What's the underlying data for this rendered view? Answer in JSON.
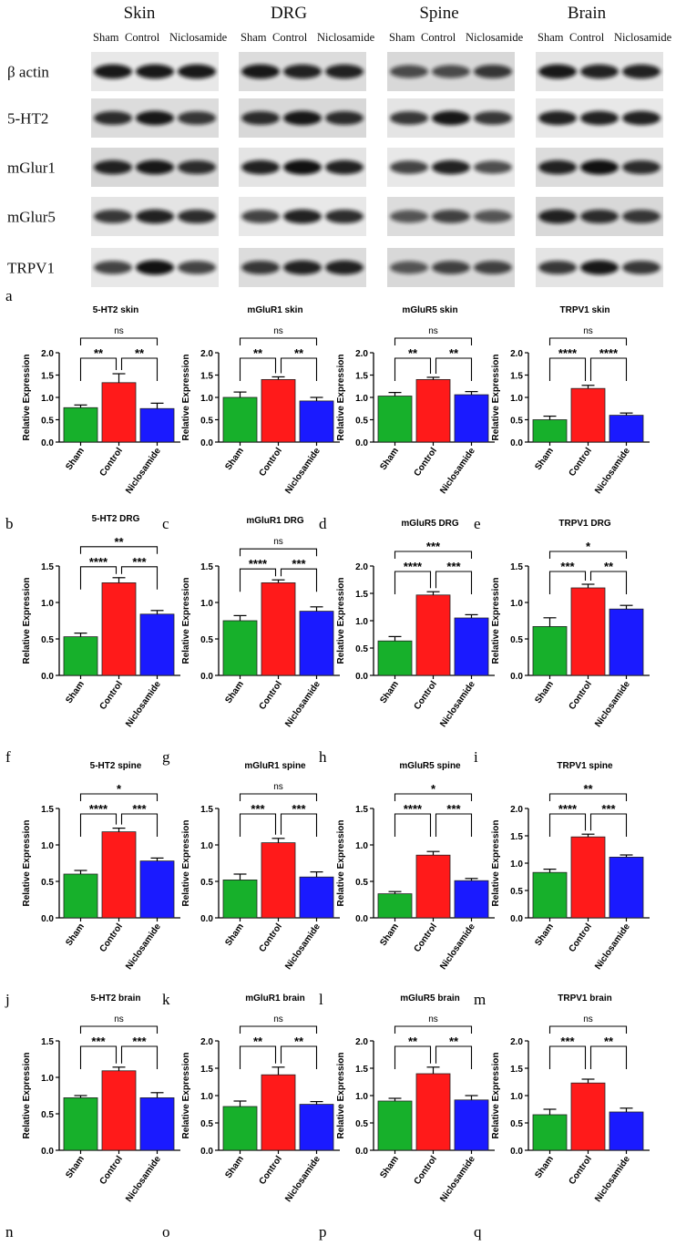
{
  "blot": {
    "panel_label": "a",
    "tissues": [
      "Skin",
      "DRG",
      "Spine",
      "Brain"
    ],
    "lane_labels": [
      "Sham",
      "Control",
      "Niclosamide"
    ],
    "row_labels": [
      "β actin",
      "5-HT2",
      "mGlur1",
      "mGlur5",
      "TRPV1"
    ]
  },
  "chart_labels": {
    "ylabel": "Relative Expression",
    "categories": [
      "Sham",
      "Control",
      "Niclosamide"
    ]
  },
  "colors": {
    "sham": "#17b02b",
    "control": "#ff1a1a",
    "niclosamide": "#1a1aff"
  },
  "chart_data": [
    {
      "type": "bar",
      "letter": "b",
      "title": "5-HT2 skin",
      "categories": [
        "Sham",
        "Control",
        "Niclosamide"
      ],
      "values": [
        0.77,
        1.33,
        0.75
      ],
      "errors": [
        0.06,
        0.2,
        0.12
      ],
      "ylim": [
        0,
        2.0
      ],
      "yticks": [
        "0.0",
        "0.5",
        "1.0",
        "1.5",
        "2.0"
      ],
      "ylabel": "Relative Expression",
      "brackets": [
        {
          "from": 0,
          "to": 1,
          "label": "**",
          "level": 0
        },
        {
          "from": 1,
          "to": 2,
          "label": "**",
          "level": 0
        },
        {
          "from": 0,
          "to": 2,
          "label": "ns",
          "level": 1
        }
      ]
    },
    {
      "type": "bar",
      "letter": "c",
      "title": "mGluR1 skin",
      "categories": [
        "Sham",
        "Control",
        "Niclosamide"
      ],
      "values": [
        1.0,
        1.4,
        0.92
      ],
      "errors": [
        0.12,
        0.06,
        0.08
      ],
      "ylim": [
        0,
        2.0
      ],
      "yticks": [
        "0.0",
        "0.5",
        "1.0",
        "1.5",
        "2.0"
      ],
      "ylabel": "Relative Expression",
      "brackets": [
        {
          "from": 0,
          "to": 1,
          "label": "**",
          "level": 0
        },
        {
          "from": 1,
          "to": 2,
          "label": "**",
          "level": 0
        },
        {
          "from": 0,
          "to": 2,
          "label": "ns",
          "level": 1
        }
      ]
    },
    {
      "type": "bar",
      "letter": "d",
      "title": "mGluR5 skin",
      "categories": [
        "Sham",
        "Control",
        "Niclosamide"
      ],
      "values": [
        1.03,
        1.4,
        1.06
      ],
      "errors": [
        0.08,
        0.05,
        0.07
      ],
      "ylim": [
        0,
        2.0
      ],
      "yticks": [
        "0.0",
        "0.5",
        "1.0",
        "1.5",
        "2.0"
      ],
      "ylabel": "Relative Expression",
      "brackets": [
        {
          "from": 0,
          "to": 1,
          "label": "**",
          "level": 0
        },
        {
          "from": 1,
          "to": 2,
          "label": "**",
          "level": 0
        },
        {
          "from": 0,
          "to": 2,
          "label": "ns",
          "level": 1
        }
      ]
    },
    {
      "type": "bar",
      "letter": "e",
      "title": "TRPV1 skin",
      "categories": [
        "Sham",
        "Control",
        "Niclosamide"
      ],
      "values": [
        0.5,
        1.2,
        0.6
      ],
      "errors": [
        0.08,
        0.07,
        0.05
      ],
      "ylim": [
        0,
        2.0
      ],
      "yticks": [
        "0.0",
        "0.5",
        "1.0",
        "1.5",
        "2.0"
      ],
      "ylabel": "Relative Expression",
      "brackets": [
        {
          "from": 0,
          "to": 1,
          "label": "****",
          "level": 0
        },
        {
          "from": 1,
          "to": 2,
          "label": "****",
          "level": 0
        },
        {
          "from": 0,
          "to": 2,
          "label": "ns",
          "level": 1
        }
      ]
    },
    {
      "type": "bar",
      "letter": "f",
      "title": "5-HT2 DRG",
      "categories": [
        "Sham",
        "Control",
        "Niclosamide"
      ],
      "values": [
        0.53,
        1.27,
        0.84
      ],
      "errors": [
        0.05,
        0.07,
        0.05
      ],
      "ylim": [
        0,
        1.5
      ],
      "yticks": [
        "0.0",
        "0.5",
        "1.0",
        "1.5"
      ],
      "ylabel": "Relative Expression",
      "brackets": [
        {
          "from": 0,
          "to": 1,
          "label": "****",
          "level": 0
        },
        {
          "from": 1,
          "to": 2,
          "label": "***",
          "level": 0
        },
        {
          "from": 0,
          "to": 2,
          "label": "**",
          "level": 1
        }
      ]
    },
    {
      "type": "bar",
      "letter": "g",
      "title": "mGluR1 DRG",
      "categories": [
        "Sham",
        "Control",
        "Niclosamide"
      ],
      "values": [
        0.75,
        1.27,
        0.88
      ],
      "errors": [
        0.07,
        0.04,
        0.06
      ],
      "ylim": [
        0,
        1.5
      ],
      "yticks": [
        "0.0",
        "0.5",
        "1.0",
        "1.5"
      ],
      "ylabel": "Relative Expression",
      "brackets": [
        {
          "from": 0,
          "to": 1,
          "label": "****",
          "level": 0
        },
        {
          "from": 1,
          "to": 2,
          "label": "***",
          "level": 0
        },
        {
          "from": 0,
          "to": 2,
          "label": "ns",
          "level": 1
        }
      ]
    },
    {
      "type": "bar",
      "letter": "h",
      "title": "mGluR5 DRG",
      "categories": [
        "Sham",
        "Control",
        "Niclosamide"
      ],
      "values": [
        0.63,
        1.47,
        1.05
      ],
      "errors": [
        0.08,
        0.06,
        0.06
      ],
      "ylim": [
        0,
        2.0
      ],
      "yticks": [
        "0.0",
        "0.5",
        "1.0",
        "1.5",
        "2.0"
      ],
      "ylabel": "Relative Expression",
      "brackets": [
        {
          "from": 0,
          "to": 1,
          "label": "****",
          "level": 0
        },
        {
          "from": 1,
          "to": 2,
          "label": "***",
          "level": 0
        },
        {
          "from": 0,
          "to": 2,
          "label": "***",
          "level": 1
        }
      ]
    },
    {
      "type": "bar",
      "letter": "i",
      "title": "TRPV1 DRG",
      "categories": [
        "Sham",
        "Control",
        "Niclosamide"
      ],
      "values": [
        0.67,
        1.2,
        0.91
      ],
      "errors": [
        0.12,
        0.05,
        0.05
      ],
      "ylim": [
        0,
        1.5
      ],
      "yticks": [
        "0.0",
        "0.5",
        "1.0",
        "1.5"
      ],
      "ylabel": "Relative Expression",
      "brackets": [
        {
          "from": 0,
          "to": 1,
          "label": "***",
          "level": 0
        },
        {
          "from": 1,
          "to": 2,
          "label": "**",
          "level": 0
        },
        {
          "from": 0,
          "to": 2,
          "label": "*",
          "level": 1
        }
      ]
    },
    {
      "type": "bar",
      "letter": "j",
      "title": "5-HT2 spine",
      "categories": [
        "Sham",
        "Control",
        "Niclosamide"
      ],
      "values": [
        0.6,
        1.18,
        0.78
      ],
      "errors": [
        0.05,
        0.05,
        0.04
      ],
      "ylim": [
        0,
        1.5
      ],
      "yticks": [
        "0.0",
        "0.5",
        "1.0",
        "1.5"
      ],
      "ylabel": "Relative Expression",
      "brackets": [
        {
          "from": 0,
          "to": 1,
          "label": "****",
          "level": 0
        },
        {
          "from": 1,
          "to": 2,
          "label": "***",
          "level": 0
        },
        {
          "from": 0,
          "to": 2,
          "label": "*",
          "level": 1
        }
      ]
    },
    {
      "type": "bar",
      "letter": "k",
      "title": "mGluR1 spine",
      "categories": [
        "Sham",
        "Control",
        "Niclosamide"
      ],
      "values": [
        0.52,
        1.03,
        0.56
      ],
      "errors": [
        0.08,
        0.06,
        0.07
      ],
      "ylim": [
        0,
        1.5
      ],
      "yticks": [
        "0.0",
        "0.5",
        "1.0",
        "1.5"
      ],
      "ylabel": "Relative Expression",
      "brackets": [
        {
          "from": 0,
          "to": 1,
          "label": "***",
          "level": 0
        },
        {
          "from": 1,
          "to": 2,
          "label": "***",
          "level": 0
        },
        {
          "from": 0,
          "to": 2,
          "label": "ns",
          "level": 1
        }
      ]
    },
    {
      "type": "bar",
      "letter": "l",
      "title": "mGluR5 spine",
      "categories": [
        "Sham",
        "Control",
        "Niclosamide"
      ],
      "values": [
        0.33,
        0.86,
        0.51
      ],
      "errors": [
        0.03,
        0.05,
        0.03
      ],
      "ylim": [
        0,
        1.5
      ],
      "yticks": [
        "0.0",
        "0.5",
        "1.0",
        "1.5"
      ],
      "ylabel": "Relative Expression",
      "brackets": [
        {
          "from": 0,
          "to": 1,
          "label": "****",
          "level": 0
        },
        {
          "from": 1,
          "to": 2,
          "label": "***",
          "level": 0
        },
        {
          "from": 0,
          "to": 2,
          "label": "*",
          "level": 1
        }
      ]
    },
    {
      "type": "bar",
      "letter": "m",
      "title": "TRPV1 spine",
      "categories": [
        "Sham",
        "Control",
        "Niclosamide"
      ],
      "values": [
        0.83,
        1.48,
        1.11
      ],
      "errors": [
        0.06,
        0.05,
        0.04
      ],
      "ylim": [
        0,
        2.0
      ],
      "yticks": [
        "0.0",
        "0.5",
        "1.0",
        "1.5",
        "2.0"
      ],
      "ylabel": "Relative Expression",
      "brackets": [
        {
          "from": 0,
          "to": 1,
          "label": "****",
          "level": 0
        },
        {
          "from": 1,
          "to": 2,
          "label": "***",
          "level": 0
        },
        {
          "from": 0,
          "to": 2,
          "label": "**",
          "level": 1
        }
      ]
    },
    {
      "type": "bar",
      "letter": "n",
      "title": "5-HT2 brain",
      "categories": [
        "Sham",
        "Control",
        "Niclosamide"
      ],
      "values": [
        0.72,
        1.09,
        0.72
      ],
      "errors": [
        0.03,
        0.05,
        0.07
      ],
      "ylim": [
        0,
        1.5
      ],
      "yticks": [
        "0.0",
        "0.5",
        "1.0",
        "1.5"
      ],
      "ylabel": "Relative Expression",
      "brackets": [
        {
          "from": 0,
          "to": 1,
          "label": "***",
          "level": 0
        },
        {
          "from": 1,
          "to": 2,
          "label": "***",
          "level": 0
        },
        {
          "from": 0,
          "to": 2,
          "label": "ns",
          "level": 1
        }
      ]
    },
    {
      "type": "bar",
      "letter": "o",
      "title": "mGluR1 brain",
      "categories": [
        "Sham",
        "Control",
        "Niclosamide"
      ],
      "values": [
        0.8,
        1.38,
        0.84
      ],
      "errors": [
        0.1,
        0.14,
        0.05
      ],
      "ylim": [
        0,
        2.0
      ],
      "yticks": [
        "0.0",
        "0.5",
        "1.0",
        "1.5",
        "2.0"
      ],
      "ylabel": "Relative Expression",
      "brackets": [
        {
          "from": 0,
          "to": 1,
          "label": "**",
          "level": 0
        },
        {
          "from": 1,
          "to": 2,
          "label": "**",
          "level": 0
        },
        {
          "from": 0,
          "to": 2,
          "label": "ns",
          "level": 1
        }
      ]
    },
    {
      "type": "bar",
      "letter": "p",
      "title": "mGluR5 brain",
      "categories": [
        "Sham",
        "Control",
        "Niclosamide"
      ],
      "values": [
        0.9,
        1.4,
        0.92
      ],
      "errors": [
        0.05,
        0.12,
        0.08
      ],
      "ylim": [
        0,
        2.0
      ],
      "yticks": [
        "0.0",
        "0.5",
        "1.0",
        "1.5",
        "2.0"
      ],
      "ylabel": "Relative Expression",
      "brackets": [
        {
          "from": 0,
          "to": 1,
          "label": "**",
          "level": 0
        },
        {
          "from": 1,
          "to": 2,
          "label": "**",
          "level": 0
        },
        {
          "from": 0,
          "to": 2,
          "label": "ns",
          "level": 1
        }
      ]
    },
    {
      "type": "bar",
      "letter": "q",
      "title": "TRPV1 brain",
      "categories": [
        "Sham",
        "Control",
        "Niclosamide"
      ],
      "values": [
        0.65,
        1.23,
        0.7
      ],
      "errors": [
        0.1,
        0.07,
        0.07
      ],
      "ylim": [
        0,
        2.0
      ],
      "yticks": [
        "0.0",
        "0.5",
        "1.0",
        "1.5",
        "2.0"
      ],
      "ylabel": "Relative Expression",
      "brackets": [
        {
          "from": 0,
          "to": 1,
          "label": "***",
          "level": 0
        },
        {
          "from": 1,
          "to": 2,
          "label": "**",
          "level": 0
        },
        {
          "from": 0,
          "to": 2,
          "label": "ns",
          "level": 1
        }
      ]
    }
  ]
}
